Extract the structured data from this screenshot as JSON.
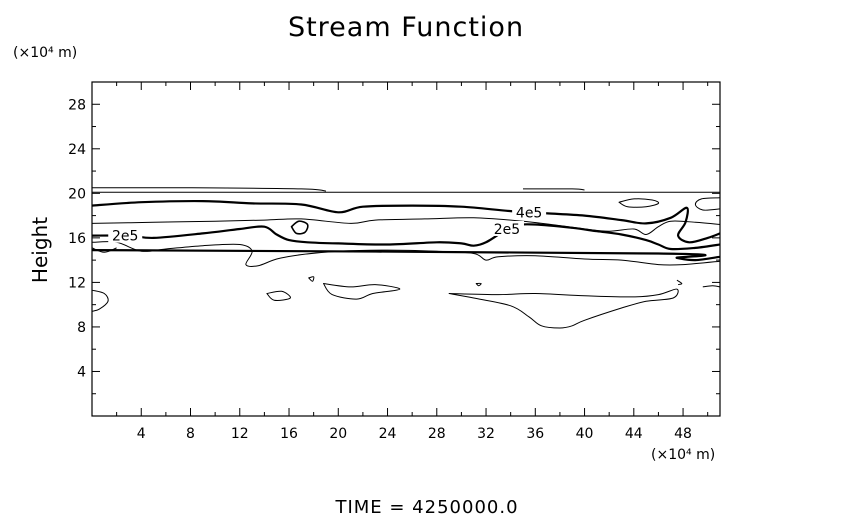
{
  "chart_data": {
    "type": "contour",
    "title": "Stream Function",
    "ylabel": "Height",
    "yunits": "(×10⁴ m)",
    "xunits": "(×10⁴ m)",
    "xlim": [
      0,
      51
    ],
    "ylim": [
      0,
      30
    ],
    "xticks": [
      4,
      8,
      12,
      16,
      20,
      24,
      28,
      32,
      36,
      40,
      44,
      48
    ],
    "yticks": [
      4,
      8,
      12,
      16,
      20,
      24,
      28
    ],
    "contour_labels": [
      {
        "text": "4e5",
        "x": 35.5,
        "y": 18.3
      },
      {
        "text": "2e5",
        "x": 33.7,
        "y": 16.8
      },
      {
        "text": "2e5",
        "x": 2.7,
        "y": 16.2
      }
    ],
    "contours": [
      {
        "level": "upper-thin",
        "weight": 1,
        "closed": false,
        "points": [
          [
            0,
            20.1
          ],
          [
            17,
            20.1
          ],
          [
            34,
            20.1
          ],
          [
            51,
            20.1
          ]
        ]
      },
      {
        "level": "upper-thin-b",
        "weight": 1,
        "closed": false,
        "points": [
          [
            0,
            20.5
          ],
          [
            8,
            20.5
          ],
          [
            17,
            20.4
          ],
          [
            19,
            20.2
          ]
        ]
      },
      {
        "level": "4e5",
        "weight": 2.2,
        "closed": false,
        "points": [
          [
            0,
            18.9
          ],
          [
            4,
            19.2
          ],
          [
            9,
            19.3
          ],
          [
            13,
            19.1
          ],
          [
            17,
            19.0
          ],
          [
            20,
            18.3
          ],
          [
            22,
            18.8
          ],
          [
            26,
            18.9
          ],
          [
            30,
            18.8
          ],
          [
            34,
            18.4
          ],
          [
            37,
            18.2
          ],
          [
            40,
            18.0
          ],
          [
            43,
            17.6
          ],
          [
            45,
            17.3
          ],
          [
            47,
            17.8
          ],
          [
            48.3,
            18.7
          ],
          [
            48.2,
            17.4
          ],
          [
            47.6,
            16.2
          ],
          [
            48.5,
            15.6
          ],
          [
            50,
            16.0
          ],
          [
            51,
            16.4
          ]
        ]
      },
      {
        "level": "2e5",
        "weight": 2.2,
        "closed": false,
        "points": [
          [
            0,
            16.2
          ],
          [
            3,
            16.2
          ],
          [
            5,
            16.0
          ],
          [
            9,
            16.4
          ],
          [
            12,
            16.8
          ],
          [
            14,
            17.0
          ],
          [
            15,
            16.3
          ],
          [
            16,
            15.8
          ],
          [
            17.5,
            15.6
          ],
          [
            20,
            15.5
          ],
          [
            24,
            15.4
          ],
          [
            28,
            15.6
          ],
          [
            30,
            15.5
          ],
          [
            31,
            15.3
          ],
          [
            32,
            15.6
          ],
          [
            33.4,
            16.6
          ],
          [
            34,
            17.1
          ],
          [
            36,
            17.2
          ],
          [
            39,
            16.9
          ],
          [
            41,
            16.6
          ],
          [
            43,
            16.3
          ],
          [
            45,
            15.8
          ],
          [
            46,
            15.4
          ],
          [
            47,
            15.0
          ],
          [
            49,
            15.1
          ],
          [
            51,
            15.4
          ]
        ]
      },
      {
        "level": "2e5-lower",
        "weight": 2.2,
        "closed": false,
        "points": [
          [
            0,
            14.9
          ],
          [
            46,
            14.6
          ],
          [
            47.5,
            14.2
          ],
          [
            49,
            14.0
          ],
          [
            51,
            14.3
          ]
        ]
      },
      {
        "level": "thin-mid",
        "weight": 1,
        "closed": false,
        "points": [
          [
            0,
            17.3
          ],
          [
            5,
            17.4
          ],
          [
            10,
            17.5
          ],
          [
            14,
            17.6
          ],
          [
            17,
            17.7
          ],
          [
            21,
            17.3
          ],
          [
            23,
            17.6
          ],
          [
            27,
            17.7
          ],
          [
            31,
            17.8
          ],
          [
            35,
            17.5
          ],
          [
            38,
            17.1
          ],
          [
            40,
            16.8
          ],
          [
            42,
            16.6
          ],
          [
            44,
            16.8
          ],
          [
            45,
            16.3
          ],
          [
            46,
            17.0
          ],
          [
            47,
            17.5
          ],
          [
            49,
            17.4
          ],
          [
            51,
            17.2
          ]
        ]
      },
      {
        "level": "thin-under",
        "weight": 1,
        "closed": false,
        "points": [
          [
            0,
            15.6
          ],
          [
            2,
            15.6
          ],
          [
            4,
            14.8
          ],
          [
            6,
            15.0
          ],
          [
            9,
            15.3
          ],
          [
            12,
            15.4
          ],
          [
            13,
            14.8
          ],
          [
            12.5,
            13.6
          ],
          [
            13.5,
            13.5
          ],
          [
            15,
            14.1
          ],
          [
            17,
            14.5
          ],
          [
            20,
            14.8
          ],
          [
            24,
            14.9
          ],
          [
            28,
            14.8
          ],
          [
            31,
            14.6
          ],
          [
            32,
            14.0
          ],
          [
            33,
            14.3
          ],
          [
            36,
            14.4
          ],
          [
            40,
            14.1
          ],
          [
            43,
            14.0
          ],
          [
            46,
            13.6
          ],
          [
            48,
            13.6
          ],
          [
            51,
            13.9
          ]
        ]
      },
      {
        "level": "thin-low-ridge",
        "weight": 1,
        "closed": false,
        "points": [
          [
            0,
            15.1
          ],
          [
            1,
            14.7
          ],
          [
            2,
            15.1
          ]
        ]
      },
      {
        "level": "neg-big",
        "weight": 1,
        "closed": true,
        "points": [
          [
            29,
            11.0
          ],
          [
            33,
            10.9
          ],
          [
            36,
            11.0
          ],
          [
            40,
            10.8
          ],
          [
            44,
            10.7
          ],
          [
            46,
            10.9
          ],
          [
            47.5,
            11.4
          ],
          [
            47.2,
            10.6
          ],
          [
            45,
            10.3
          ],
          [
            43,
            9.7
          ],
          [
            40,
            8.6
          ],
          [
            39,
            8.1
          ],
          [
            38,
            7.9
          ],
          [
            36.5,
            8.1
          ],
          [
            35.5,
            8.9
          ],
          [
            34,
            9.9
          ],
          [
            31,
            10.6
          ],
          [
            29,
            11.0
          ]
        ]
      },
      {
        "level": "neg-mid",
        "weight": 1,
        "closed": true,
        "points": [
          [
            18.8,
            11.9
          ],
          [
            21,
            11.6
          ],
          [
            23,
            11.8
          ],
          [
            25,
            11.4
          ],
          [
            22.8,
            11.0
          ],
          [
            21.5,
            10.5
          ],
          [
            19.5,
            10.9
          ],
          [
            18.8,
            11.9
          ]
        ]
      },
      {
        "level": "neg-small-a",
        "weight": 1,
        "closed": true,
        "points": [
          [
            14.2,
            11.0
          ],
          [
            15.4,
            11.2
          ],
          [
            16.1,
            10.6
          ],
          [
            14.8,
            10.4
          ],
          [
            14.2,
            11.0
          ]
        ]
      },
      {
        "level": "neg-small-b",
        "weight": 1,
        "closed": true,
        "points": [
          [
            17.6,
            12.4
          ],
          [
            18.0,
            12.5
          ],
          [
            17.9,
            12.1
          ],
          [
            17.6,
            12.4
          ]
        ]
      },
      {
        "level": "neg-small-c",
        "weight": 1,
        "closed": true,
        "points": [
          [
            31.2,
            11.9
          ],
          [
            31.6,
            11.9
          ],
          [
            31.4,
            11.7
          ],
          [
            31.2,
            11.9
          ]
        ]
      },
      {
        "level": "left-edge",
        "weight": 1,
        "closed": false,
        "points": [
          [
            0,
            11.3
          ],
          [
            1.0,
            11.0
          ],
          [
            1.3,
            10.3
          ],
          [
            0.6,
            9.6
          ],
          [
            0,
            9.4
          ]
        ]
      },
      {
        "level": "closed-mid",
        "weight": 1.6,
        "closed": true,
        "points": [
          [
            16.2,
            17.0
          ],
          [
            16.8,
            17.5
          ],
          [
            17.5,
            17.2
          ],
          [
            17.3,
            16.5
          ],
          [
            16.6,
            16.4
          ],
          [
            16.2,
            17.0
          ]
        ]
      },
      {
        "level": "closed-right",
        "weight": 1,
        "closed": true,
        "points": [
          [
            42.8,
            19.2
          ],
          [
            44,
            19.5
          ],
          [
            45.5,
            19.4
          ],
          [
            46,
            19.1
          ],
          [
            45,
            18.8
          ],
          [
            43.5,
            18.8
          ],
          [
            42.8,
            19.2
          ]
        ]
      },
      {
        "level": "right-edge-loop",
        "weight": 1,
        "closed": false,
        "points": [
          [
            51,
            19.6
          ],
          [
            49.5,
            19.5
          ],
          [
            49,
            19.0
          ],
          [
            49.6,
            18.5
          ],
          [
            51,
            18.6
          ]
        ]
      },
      {
        "level": "right-edge-dash",
        "weight": 1,
        "closed": false,
        "points": [
          [
            49.6,
            11.6
          ],
          [
            50.4,
            11.7
          ],
          [
            51,
            11.6
          ]
        ]
      },
      {
        "level": "right-bump",
        "weight": 1,
        "closed": false,
        "points": [
          [
            47.5,
            12.2
          ],
          [
            47.9,
            11.9
          ],
          [
            47.6,
            11.8
          ]
        ]
      },
      {
        "level": "top-dash",
        "weight": 1,
        "closed": false,
        "points": [
          [
            35,
            20.4
          ],
          [
            39,
            20.4
          ],
          [
            40,
            20.3
          ]
        ]
      }
    ]
  },
  "footer": "TIME  =  4250000.0"
}
